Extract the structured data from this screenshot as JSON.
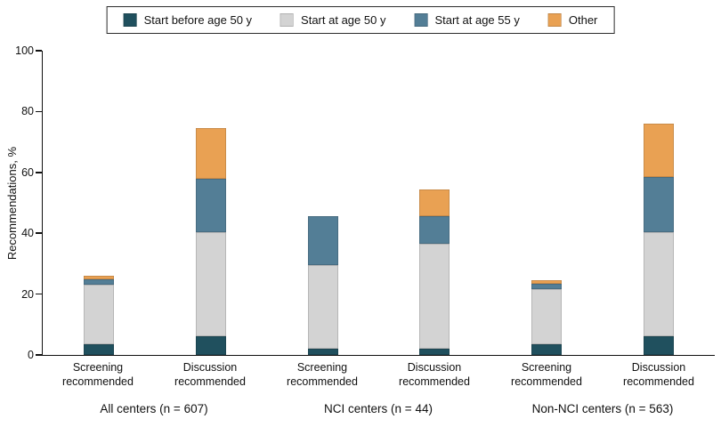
{
  "legend": {
    "items": [
      {
        "label": "Start before age 50 y",
        "color": "#20505e"
      },
      {
        "label": "Start at age 50 y",
        "color": "#d3d3d3"
      },
      {
        "label": "Start at age 55 y",
        "color": "#537e96"
      },
      {
        "label": "Other",
        "color": "#e9a153"
      }
    ]
  },
  "chart_data": {
    "type": "bar",
    "stacked": true,
    "title": "",
    "xlabel": "",
    "ylabel": "Recommendations, %",
    "ylim": [
      0,
      100
    ],
    "yticks": [
      0,
      20,
      40,
      60,
      80,
      100
    ],
    "grid": false,
    "legend_position": "top",
    "series_names": [
      "Start before age 50 y",
      "Start at age 50 y",
      "Start at age 55 y",
      "Other"
    ],
    "groups": [
      {
        "label": "All centers (n = 607)",
        "bars": [
          {
            "label": "Screening recommended",
            "values": [
              3.5,
              19.5,
              2,
              1
            ]
          },
          {
            "label": "Discussion recommended",
            "values": [
              6,
              34.5,
              17.5,
              16.5
            ]
          }
        ]
      },
      {
        "label": "NCI centers (n = 44)",
        "bars": [
          {
            "label": "Screening recommended",
            "values": [
              2,
              27.5,
              16,
              0
            ]
          },
          {
            "label": "Discussion recommended",
            "values": [
              2,
              34.5,
              9,
              9
            ]
          }
        ]
      },
      {
        "label": "Non-NCI centers (n = 563)",
        "bars": [
          {
            "label": "Screening recommended",
            "values": [
              3.5,
              18,
              2,
              1
            ]
          },
          {
            "label": "Discussion recommended",
            "values": [
              6,
              34.5,
              18,
              17.5
            ]
          }
        ]
      }
    ]
  }
}
